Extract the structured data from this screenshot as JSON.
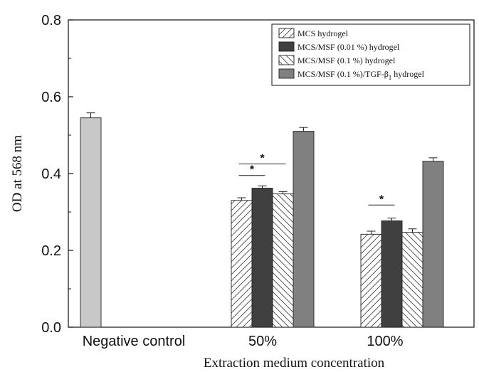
{
  "chart_data": {
    "type": "bar",
    "xlabel": "Extraction medium concentration",
    "ylabel": "OD at 568 nm",
    "ylim": [
      0,
      0.8
    ],
    "yticks": [
      "0.0",
      "0.2",
      "0.4",
      "0.6",
      "0.8"
    ],
    "categories": [
      "Negative control",
      "50%",
      "100%"
    ],
    "legend_position": "top-right",
    "control": {
      "category": "Negative control",
      "value": 0.545,
      "error": 0.013,
      "color": "#c8c8c8"
    },
    "series": [
      {
        "name": "MCS hydrogel",
        "pattern": "hatch-forward",
        "color": "#ffffff",
        "values": [
          null,
          0.33,
          0.242
        ],
        "errors": [
          null,
          0.007,
          0.008
        ]
      },
      {
        "name": "MCS/MSF (0.01 %) hydrogel",
        "pattern": "solid",
        "color": "#404040",
        "values": [
          null,
          0.362,
          0.277
        ],
        "errors": [
          null,
          0.006,
          0.007
        ]
      },
      {
        "name": "MCS/MSF (0.1 %) hydrogel",
        "pattern": "hatch-backward",
        "color": "#ffffff",
        "values": [
          null,
          0.347,
          0.247
        ],
        "errors": [
          null,
          0.006,
          0.009
        ]
      },
      {
        "name": "MCS/MSF (0.1 %)/TGF-β1 hydrogel",
        "name_main": "MCS/MSF (0.1 %)/TGF-β",
        "name_sub": "1",
        "name_tail": " hydrogel",
        "pattern": "solid",
        "color": "#808080",
        "values": [
          null,
          0.51,
          0.432
        ],
        "errors": [
          null,
          0.01,
          0.009
        ]
      }
    ],
    "annotations": [
      {
        "label": "*",
        "category": "50%",
        "from_series": 0,
        "to_series": 2,
        "level": 0.425
      },
      {
        "label": "*",
        "category": "50%",
        "from_series": 0,
        "to_series": 1,
        "level": 0.395
      },
      {
        "label": "*",
        "category": "100%",
        "from_series": 0,
        "to_series": 1,
        "level": 0.318
      }
    ]
  }
}
